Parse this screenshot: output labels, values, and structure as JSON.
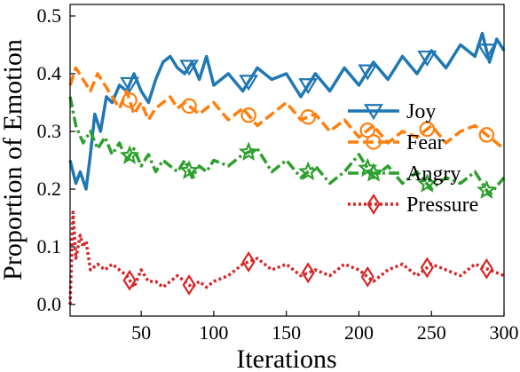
{
  "chart_data": {
    "type": "line",
    "title": "",
    "xlabel": "Iterations",
    "ylabel": "Proportion of Emotion",
    "xlim": [
      1,
      300
    ],
    "ylim": [
      -0.02,
      0.52
    ],
    "xticks": [
      50,
      100,
      150,
      200,
      250,
      300
    ],
    "yticks": [
      0.0,
      0.1,
      0.2,
      0.3,
      0.4,
      0.5
    ],
    "xtick_labels": [
      "50",
      "100",
      "150",
      "200",
      "250",
      "300"
    ],
    "ytick_labels": [
      "0.0",
      "0.1",
      "0.2",
      "0.3",
      "0.4",
      "0.5"
    ],
    "grid": false,
    "legend_position": "right",
    "series": [
      {
        "name": "Joy",
        "color": "#1f77b4",
        "linestyle": "solid",
        "marker": "triangle-down",
        "marker_every": 41,
        "x": [
          1,
          5,
          8,
          12,
          15,
          18,
          22,
          26,
          30,
          35,
          40,
          45,
          50,
          55,
          60,
          65,
          70,
          75,
          80,
          85,
          90,
          95,
          100,
          110,
          120,
          130,
          140,
          150,
          160,
          170,
          180,
          190,
          200,
          210,
          220,
          230,
          240,
          250,
          260,
          270,
          280,
          285,
          290,
          295,
          300
        ],
        "y": [
          0.25,
          0.21,
          0.23,
          0.2,
          0.26,
          0.33,
          0.3,
          0.36,
          0.35,
          0.38,
          0.37,
          0.4,
          0.37,
          0.35,
          0.39,
          0.42,
          0.43,
          0.41,
          0.4,
          0.42,
          0.39,
          0.43,
          0.38,
          0.4,
          0.37,
          0.41,
          0.39,
          0.4,
          0.36,
          0.4,
          0.37,
          0.41,
          0.38,
          0.42,
          0.39,
          0.43,
          0.4,
          0.44,
          0.41,
          0.45,
          0.43,
          0.47,
          0.42,
          0.46,
          0.44
        ]
      },
      {
        "name": "Fear",
        "color": "#ff7f0e",
        "linestyle": "dashed",
        "marker": "circle",
        "marker_every": 41,
        "x": [
          1,
          5,
          10,
          15,
          20,
          25,
          30,
          35,
          40,
          45,
          50,
          55,
          60,
          65,
          70,
          75,
          80,
          85,
          90,
          95,
          100,
          110,
          120,
          130,
          140,
          150,
          160,
          170,
          180,
          190,
          200,
          210,
          220,
          230,
          240,
          250,
          260,
          270,
          280,
          290,
          300
        ],
        "y": [
          0.38,
          0.41,
          0.39,
          0.37,
          0.4,
          0.38,
          0.36,
          0.34,
          0.37,
          0.33,
          0.35,
          0.32,
          0.34,
          0.35,
          0.36,
          0.34,
          0.35,
          0.34,
          0.33,
          0.34,
          0.35,
          0.32,
          0.34,
          0.31,
          0.33,
          0.35,
          0.32,
          0.33,
          0.3,
          0.32,
          0.29,
          0.31,
          0.28,
          0.3,
          0.29,
          0.31,
          0.28,
          0.3,
          0.31,
          0.29,
          0.27
        ]
      },
      {
        "name": "Angry",
        "color": "#2ca02c",
        "linestyle": "dashdot",
        "marker": "star",
        "marker_every": 41,
        "x": [
          1,
          5,
          10,
          15,
          20,
          25,
          30,
          35,
          40,
          45,
          50,
          55,
          60,
          65,
          70,
          75,
          80,
          85,
          90,
          95,
          100,
          110,
          120,
          130,
          140,
          150,
          160,
          170,
          180,
          190,
          200,
          210,
          220,
          230,
          240,
          250,
          260,
          270,
          280,
          290,
          300
        ],
        "y": [
          0.36,
          0.31,
          0.28,
          0.3,
          0.27,
          0.29,
          0.26,
          0.28,
          0.25,
          0.27,
          0.24,
          0.26,
          0.23,
          0.25,
          0.24,
          0.23,
          0.25,
          0.22,
          0.24,
          0.23,
          0.25,
          0.24,
          0.26,
          0.27,
          0.23,
          0.25,
          0.22,
          0.24,
          0.21,
          0.23,
          0.26,
          0.22,
          0.24,
          0.21,
          0.23,
          0.2,
          0.22,
          0.21,
          0.23,
          0.19,
          0.22
        ]
      },
      {
        "name": "Pressure",
        "color": "#d62728",
        "linestyle": "dotted",
        "marker": "diamond",
        "marker_every": 41,
        "x": [
          1,
          3,
          5,
          8,
          10,
          12,
          15,
          20,
          25,
          30,
          35,
          40,
          45,
          50,
          55,
          60,
          65,
          70,
          75,
          80,
          85,
          90,
          95,
          100,
          110,
          120,
          130,
          140,
          150,
          160,
          170,
          180,
          190,
          200,
          210,
          220,
          230,
          240,
          250,
          260,
          270,
          280,
          290,
          300
        ],
        "y": [
          0.0,
          0.16,
          0.08,
          0.12,
          0.1,
          0.11,
          0.06,
          0.07,
          0.06,
          0.07,
          0.06,
          0.05,
          0.03,
          0.06,
          0.04,
          0.04,
          0.03,
          0.04,
          0.05,
          0.04,
          0.03,
          0.04,
          0.03,
          0.04,
          0.05,
          0.07,
          0.08,
          0.06,
          0.07,
          0.05,
          0.06,
          0.05,
          0.07,
          0.06,
          0.04,
          0.06,
          0.07,
          0.05,
          0.07,
          0.06,
          0.05,
          0.07,
          0.06,
          0.05
        ]
      }
    ]
  }
}
